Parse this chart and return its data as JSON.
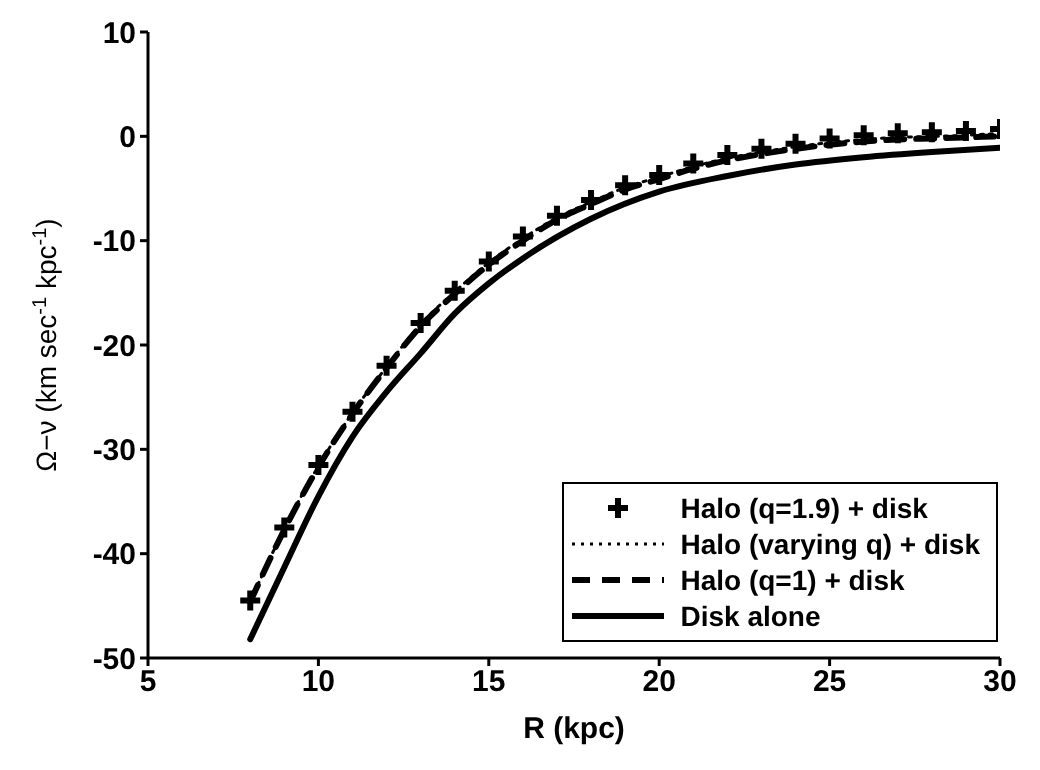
{
  "chart_data": {
    "type": "line",
    "xlabel": "R (kpc)",
    "ylabel": "Ω−ν (km sec$^{-1}$ kpc$^{-1}$)",
    "xlim": [
      5,
      30
    ],
    "xticks": [
      5,
      10,
      15,
      20,
      25,
      30
    ],
    "ylim": [
      -50,
      10
    ],
    "yticks": [
      -50,
      -40,
      -30,
      -20,
      -10,
      0,
      10
    ],
    "grid": false,
    "legend": "bottom right",
    "series": [
      {
        "name": "Halo (q=1.9) + disk",
        "type": "scatter",
        "marker": "cross",
        "color": "#000000",
        "x": [
          8,
          9,
          10,
          11,
          12,
          13,
          14,
          15,
          16,
          17,
          18,
          19,
          20,
          21,
          22,
          23,
          24,
          25,
          26,
          27,
          28,
          29,
          30
        ],
        "values": [
          -44.5,
          -37.5,
          -31.5,
          -26.4,
          -22,
          -17.9,
          -14.8,
          -12,
          -9.6,
          -7.6,
          -6.1,
          -4.7,
          -3.7,
          -2.6,
          -1.8,
          -1.2,
          -0.7,
          -0.2,
          0.1,
          0.3,
          0.4,
          0.5,
          0.7
        ]
      },
      {
        "name": "Halo (varying q) + disk",
        "type": "line",
        "line_style": "dotted",
        "color": "#000000",
        "x": [
          8,
          9,
          10,
          11,
          12,
          13,
          14,
          15,
          16,
          17,
          18,
          19,
          20,
          21,
          22,
          23,
          24,
          25,
          26,
          27,
          28,
          29,
          30
        ],
        "values": [
          -44.6,
          -37.6,
          -31.6,
          -26.5,
          -22.1,
          -18,
          -14.9,
          -12.1,
          -9.8,
          -7.8,
          -6.3,
          -4.9,
          -3.9,
          -2.9,
          -2.1,
          -1.5,
          -1,
          -0.6,
          -0.3,
          -0.1,
          0,
          0.1,
          0.3
        ]
      },
      {
        "name": "Halo (q=1) + disk",
        "type": "line",
        "line_style": "dashed",
        "color": "#000000",
        "x": [
          8,
          9,
          10,
          11,
          12,
          13,
          14,
          15,
          16,
          17,
          18,
          19,
          20,
          21,
          22,
          23,
          24,
          25,
          26,
          27,
          28,
          29,
          30
        ],
        "values": [
          -44.6,
          -37.7,
          -31.7,
          -26.6,
          -22.2,
          -18.2,
          -15.1,
          -12.3,
          -10,
          -8,
          -6.5,
          -5.1,
          -4.1,
          -3.1,
          -2.3,
          -1.7,
          -1.2,
          -0.8,
          -0.5,
          -0.3,
          -0.2,
          -0.1,
          0
        ]
      },
      {
        "name": "Disk alone",
        "type": "line",
        "line_style": "solid",
        "color": "#000000",
        "x": [
          8,
          9,
          10,
          11,
          12,
          13,
          14,
          15,
          16,
          18,
          20,
          22,
          24,
          26,
          28,
          30
        ],
        "values": [
          -48.2,
          -41.3,
          -34.5,
          -28.8,
          -24.5,
          -20.8,
          -17,
          -14.1,
          -11.7,
          -7.9,
          -5.3,
          -3.8,
          -2.7,
          -2,
          -1.5,
          -1.1
        ]
      }
    ]
  }
}
